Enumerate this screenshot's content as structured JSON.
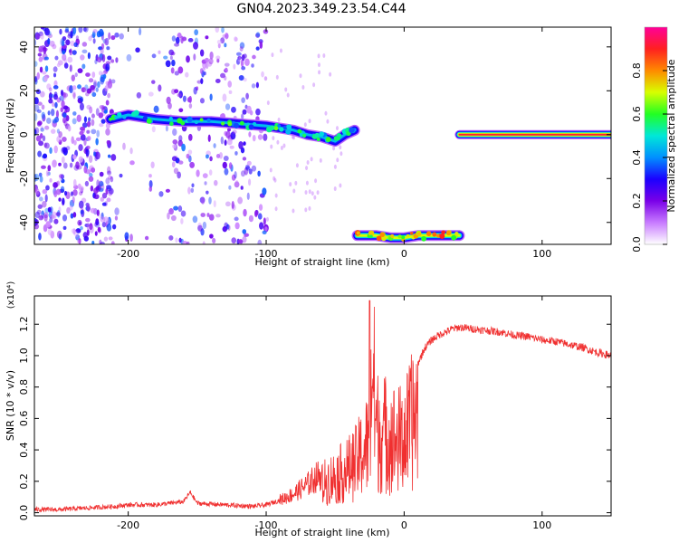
{
  "title": "GN04.2023.349.23.54.C44",
  "chart_data": [
    {
      "type": "heatmap",
      "xlabel": "Height of straight line (km)",
      "ylabel": "Frequency (Hz)",
      "xlim": [
        -268,
        150
      ],
      "ylim": [
        -50,
        49
      ],
      "xticks": [
        -200,
        -100,
        0,
        100
      ],
      "yticks": [
        -40,
        -20,
        0,
        20,
        40
      ],
      "colorbar": {
        "label": "Normalized spectral amplitude",
        "range": [
          0,
          1
        ],
        "ticks": [
          "0.0",
          "0.2",
          "0.4",
          "0.6",
          "0.8"
        ],
        "tick_values": [
          0.0,
          0.2,
          0.4,
          0.6,
          0.8
        ],
        "colors": [
          "#ffffff",
          "#c87bff",
          "#7a00e8",
          "#1b00ff",
          "#0090ff",
          "#00e8d8",
          "#22ff22",
          "#d8ff00",
          "#ff8a00",
          "#ff2020",
          "#ff0099"
        ]
      },
      "features": [
        {
          "name": "",
          "x": [
            -213,
            -200,
            -180,
            -160,
            -140,
            -120,
            -100,
            -90,
            -80,
            -70,
            -60,
            -50,
            -43,
            -36
          ],
          "y": [
            7,
            9,
            7,
            6,
            6,
            5,
            4,
            3,
            2,
            0,
            -1,
            -3,
            0,
            2
          ],
          "level": 0.45
        },
        {
          "name": "",
          "x": [
            -34,
            -20,
            -10,
            0,
            10,
            20,
            30,
            40
          ],
          "y": [
            -46,
            -46,
            -47,
            -47,
            -46,
            -46,
            -46,
            -46
          ],
          "level": 0.7
        },
        {
          "name": "",
          "x": [
            40,
            150
          ],
          "y": [
            0,
            0
          ],
          "level": 0.9
        }
      ],
      "noise_region": {
        "x": [
          -268,
          -100
        ],
        "y": [
          -50,
          49
        ],
        "level": 0.2
      }
    },
    {
      "type": "line",
      "xlabel": "Height of straight line (km)",
      "ylabel": "SNR (10 * v/v)",
      "y_multiplier": "(x10⁴)",
      "xlim": [
        -268,
        150
      ],
      "ylim": [
        -0.02,
        1.38
      ],
      "xticks": [
        -200,
        -100,
        0,
        100
      ],
      "yticks": [
        "0.0",
        "0.2",
        "0.4",
        "0.6",
        "0.8",
        "1.0",
        "1.2"
      ],
      "ytick_values": [
        0.0,
        0.2,
        0.4,
        0.6,
        0.8,
        1.0,
        1.2
      ],
      "color": "#f03030",
      "series": [
        {
          "x": [
            -268,
            -250,
            -230,
            -210,
            -200,
            -180,
            -160,
            -155,
            -150,
            -130,
            -110,
            -100,
            -90,
            -80,
            -70,
            -60,
            -55,
            -50,
            -45,
            -40,
            -35,
            -30,
            -25,
            -23,
            -20,
            -15,
            -10,
            -5,
            0,
            5,
            10,
            15,
            20,
            25,
            30,
            35,
            40,
            50,
            60,
            70,
            80,
            90,
            100,
            110,
            120,
            130,
            140,
            150
          ],
          "y": [
            0.02,
            0.02,
            0.03,
            0.04,
            0.05,
            0.05,
            0.07,
            0.13,
            0.06,
            0.05,
            0.04,
            0.05,
            0.08,
            0.12,
            0.18,
            0.25,
            0.3,
            0.32,
            0.36,
            0.4,
            0.45,
            0.55,
            0.65,
            1.35,
            0.75,
            0.72,
            0.7,
            0.65,
            0.68,
            0.8,
            0.95,
            1.05,
            1.1,
            1.13,
            1.15,
            1.17,
            1.18,
            1.17,
            1.16,
            1.15,
            1.13,
            1.12,
            1.1,
            1.09,
            1.07,
            1.05,
            1.02,
            1.0
          ]
        }
      ]
    }
  ]
}
